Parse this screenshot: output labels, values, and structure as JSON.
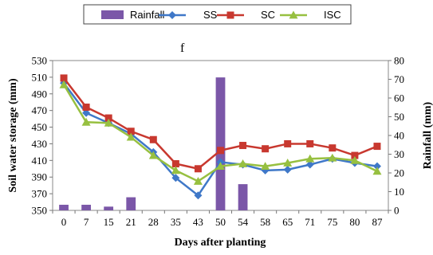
{
  "legend": [
    "Rainfall",
    "SS",
    "SC",
    "ISC"
  ],
  "panel_label": "f",
  "colors": {
    "rainfall": "#7B57A8",
    "SS": "#3F78C8",
    "SC": "#C8382F",
    "ISC": "#97C040"
  },
  "chart_data": {
    "type": "line",
    "title": "",
    "xlabel": "Days after planting",
    "ylabel": "Soil water storage (mm)",
    "y2label": "Rainfall (mm)",
    "categories": [
      "0",
      "7",
      "15",
      "21",
      "28",
      "35",
      "43",
      "50",
      "54",
      "58",
      "65",
      "71",
      "75",
      "80",
      "87"
    ],
    "ylim": [
      350,
      530
    ],
    "yticks": [
      350,
      370,
      390,
      410,
      430,
      450,
      470,
      490,
      510,
      530
    ],
    "y2lim": [
      0,
      80
    ],
    "y2ticks": [
      0,
      10,
      20,
      30,
      40,
      50,
      60,
      70,
      80
    ],
    "legend_position": "top",
    "grid": false,
    "bars": {
      "name": "Rainfall",
      "axis": "right",
      "values": [
        3,
        3,
        2,
        7,
        0,
        0,
        0,
        71,
        14,
        0,
        0,
        0,
        0,
        0,
        0
      ]
    },
    "series": [
      {
        "name": "SS",
        "marker": "diamond",
        "values": [
          503,
          467,
          455,
          442,
          420,
          389,
          368,
          408,
          405,
          398,
          399,
          405,
          412,
          407,
          403
        ]
      },
      {
        "name": "SC",
        "marker": "square",
        "values": [
          509,
          474,
          461,
          445,
          435,
          406,
          400,
          422,
          428,
          424,
          430,
          430,
          425,
          416,
          427
        ]
      },
      {
        "name": "ISC",
        "marker": "triangle",
        "values": [
          501,
          456,
          455,
          438,
          416,
          398,
          385,
          403,
          406,
          403,
          407,
          412,
          413,
          410,
          397
        ]
      }
    ]
  }
}
